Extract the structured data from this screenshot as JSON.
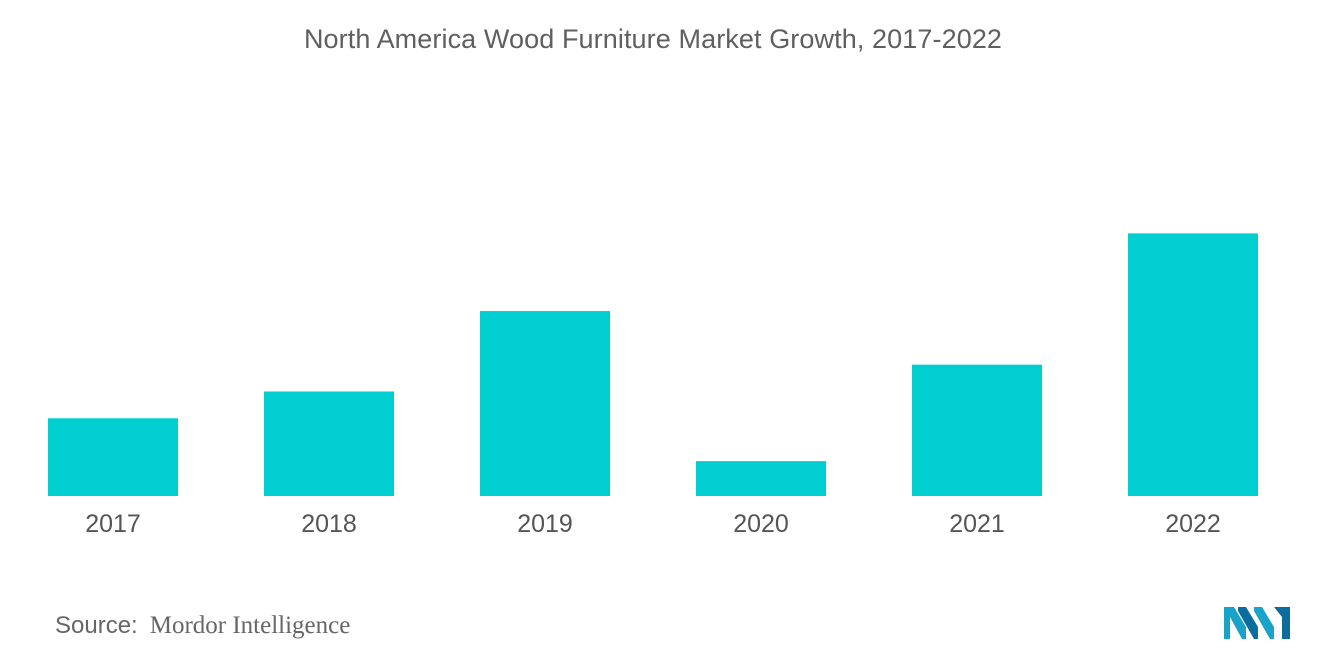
{
  "chart_data": {
    "type": "bar",
    "title": "North America Wood Furniture Market Growth, 2017-2022",
    "xlabel": "",
    "ylabel": "",
    "categories": [
      "2017",
      "2018",
      "2019",
      "2020",
      "2021",
      "2022"
    ],
    "values": [
      29,
      39,
      69,
      13,
      49,
      98
    ],
    "ylim": [
      0,
      100
    ],
    "grid": false,
    "colors": {
      "bar": "#00CED1"
    }
  },
  "source": {
    "label": "Source:",
    "value": "Mordor Intelligence"
  },
  "logo": {
    "icon": "mordor-intelligence-logo",
    "colors": [
      "#1aa3c9",
      "#0a6d9c"
    ]
  }
}
